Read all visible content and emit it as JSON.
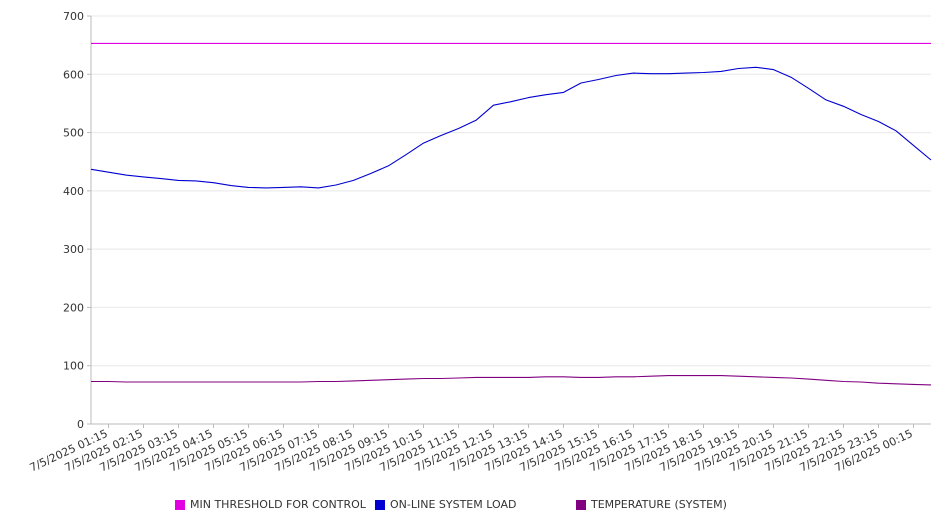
{
  "chart_data": {
    "type": "line",
    "title": "",
    "xlabel": "",
    "ylabel": "",
    "ylim": [
      0,
      700
    ],
    "yticks": [
      0,
      100,
      200,
      300,
      400,
      500,
      600,
      700
    ],
    "grid": true,
    "legend_position": "bottom",
    "x_tick_labels": [
      "7/5/2025 01:15",
      "7/5/2025 02:15",
      "7/5/2025 03:15",
      "7/5/2025 04:15",
      "7/5/2025 05:15",
      "7/5/2025 06:15",
      "7/5/2025 07:15",
      "7/5/2025 08:15",
      "7/5/2025 09:15",
      "7/5/2025 10:15",
      "7/5/2025 11:15",
      "7/5/2025 12:15",
      "7/5/2025 13:15",
      "7/5/2025 14:15",
      "7/5/2025 15:15",
      "7/5/2025 16:15",
      "7/5/2025 17:15",
      "7/5/2025 18:15",
      "7/5/2025 19:15",
      "7/5/2025 20:15",
      "7/5/2025 21:15",
      "7/5/2025 22:15",
      "7/5/2025 23:15",
      "7/6/2025 00:15"
    ],
    "x": [
      "7/5/2025 00:45",
      "7/5/2025 01:15",
      "7/5/2025 01:45",
      "7/5/2025 02:15",
      "7/5/2025 02:45",
      "7/5/2025 03:15",
      "7/5/2025 03:45",
      "7/5/2025 04:15",
      "7/5/2025 04:45",
      "7/5/2025 05:15",
      "7/5/2025 05:45",
      "7/5/2025 06:15",
      "7/5/2025 06:45",
      "7/5/2025 07:15",
      "7/5/2025 07:45",
      "7/5/2025 08:15",
      "7/5/2025 08:45",
      "7/5/2025 09:15",
      "7/5/2025 09:45",
      "7/5/2025 10:15",
      "7/5/2025 10:45",
      "7/5/2025 11:15",
      "7/5/2025 11:45",
      "7/5/2025 12:15",
      "7/5/2025 12:45",
      "7/5/2025 13:15",
      "7/5/2025 13:45",
      "7/5/2025 14:15",
      "7/5/2025 14:45",
      "7/5/2025 15:15",
      "7/5/2025 15:45",
      "7/5/2025 16:15",
      "7/5/2025 16:45",
      "7/5/2025 17:15",
      "7/5/2025 17:45",
      "7/5/2025 18:15",
      "7/5/2025 18:45",
      "7/5/2025 19:15",
      "7/5/2025 19:45",
      "7/5/2025 20:15",
      "7/5/2025 20:45",
      "7/5/2025 21:15",
      "7/5/2025 21:45",
      "7/5/2025 22:15",
      "7/5/2025 22:45",
      "7/5/2025 23:15",
      "7/5/2025 23:45",
      "7/6/2025 00:15",
      "7/6/2025 00:45"
    ],
    "series": [
      {
        "name": "MIN THRESHOLD FOR CONTROL",
        "color": "#e000e0",
        "values": [
          653,
          653,
          653,
          653,
          653,
          653,
          653,
          653,
          653,
          653,
          653,
          653,
          653,
          653,
          653,
          653,
          653,
          653,
          653,
          653,
          653,
          653,
          653,
          653,
          653,
          653,
          653,
          653,
          653,
          653,
          653,
          653,
          653,
          653,
          653,
          653,
          653,
          653,
          653,
          653,
          653,
          653,
          653,
          653,
          653,
          653,
          653,
          653,
          653
        ]
      },
      {
        "name": "ON-LINE SYSTEM LOAD",
        "color": "#0000d0",
        "values": [
          437,
          432,
          427,
          424,
          421,
          418,
          417,
          414,
          409,
          406,
          405,
          406,
          407,
          405,
          410,
          418,
          430,
          443,
          462,
          482,
          495,
          507,
          521,
          547,
          553,
          560,
          565,
          569,
          585,
          591,
          598,
          602,
          601,
          601,
          602,
          603,
          605,
          610,
          612,
          608,
          595,
          576,
          556,
          545,
          531,
          519,
          503,
          478,
          453
        ]
      },
      {
        "name": "TEMPERATURE (SYSTEM)",
        "color": "#800080",
        "values": [
          73,
          73,
          72,
          72,
          72,
          72,
          72,
          72,
          72,
          72,
          72,
          72,
          72,
          73,
          73,
          74,
          75,
          76,
          77,
          78,
          78,
          79,
          80,
          80,
          80,
          80,
          81,
          81,
          80,
          80,
          81,
          81,
          82,
          83,
          83,
          83,
          83,
          82,
          81,
          80,
          79,
          77,
          75,
          73,
          72,
          70,
          69,
          68,
          67
        ]
      }
    ]
  }
}
